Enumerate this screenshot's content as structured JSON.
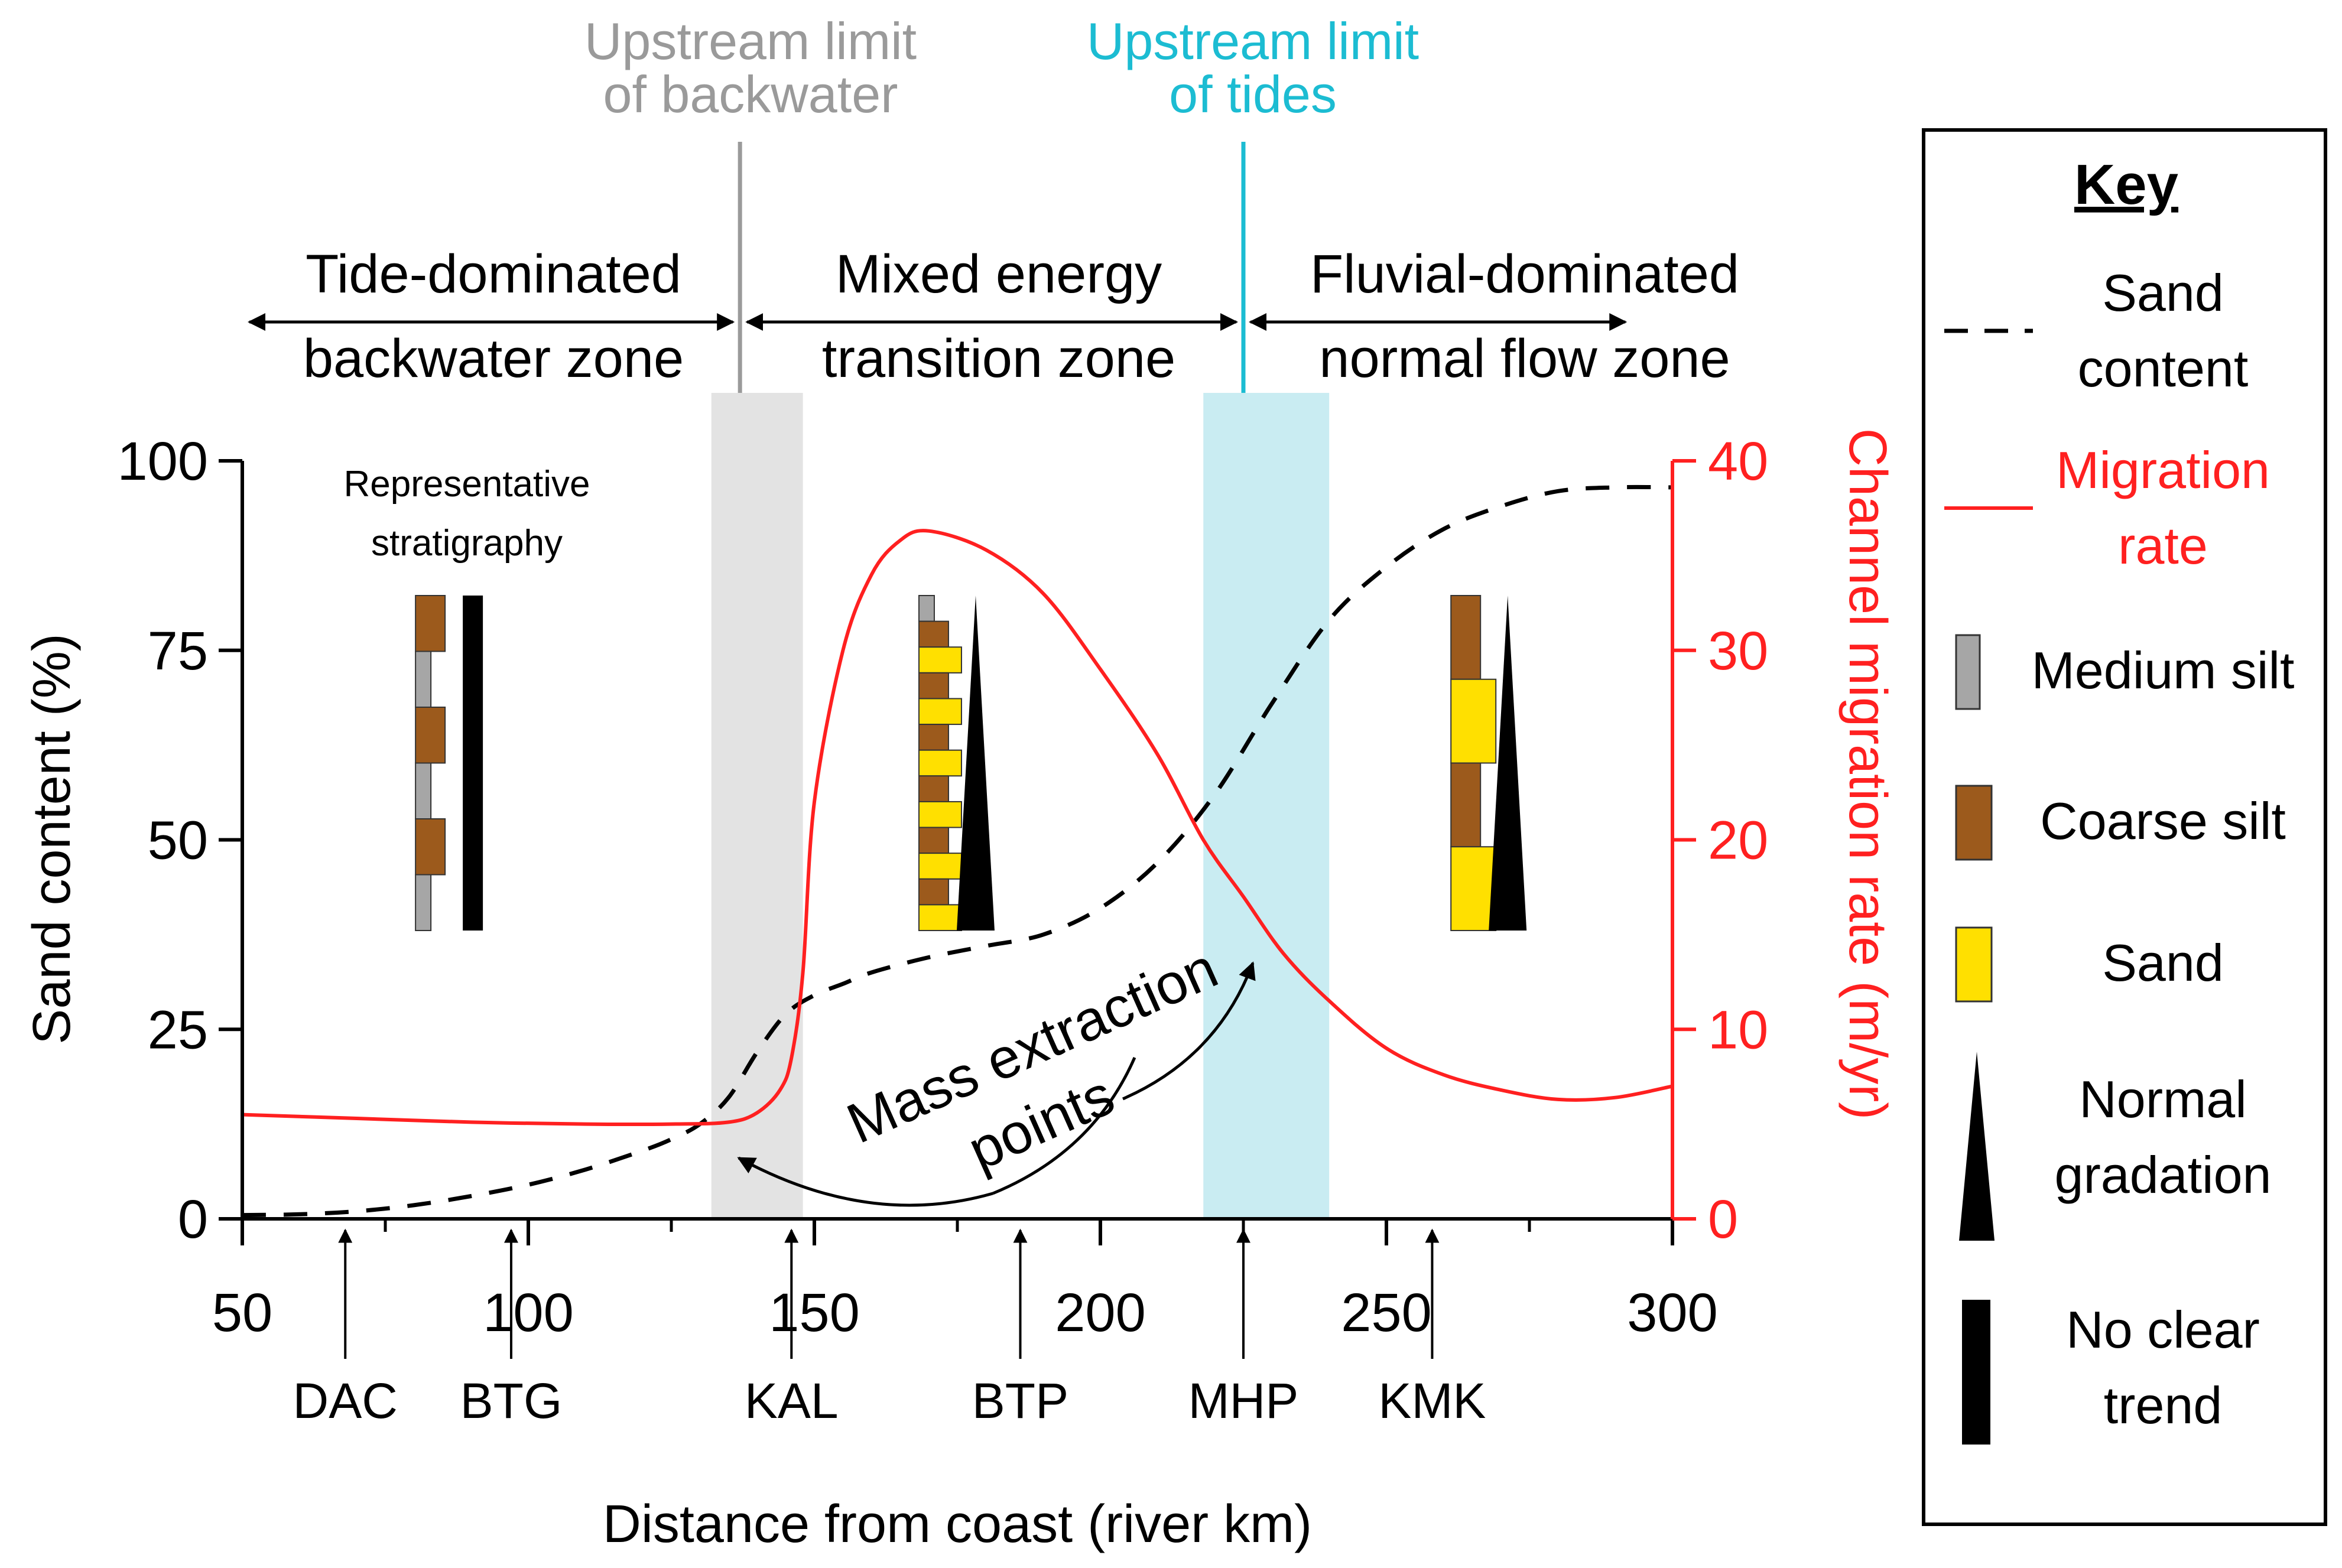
{
  "chart_data": {
    "type": "line",
    "x_axis": {
      "label": "Distance from coast (river km)",
      "range": [
        50,
        300
      ],
      "ticks": [
        {
          "value": 50,
          "label": "50"
        },
        {
          "value": 100,
          "label": "100"
        },
        {
          "value": 150,
          "label": "150"
        },
        {
          "value": 200,
          "label": "200"
        },
        {
          "value": 250,
          "label": "250"
        },
        {
          "value": 300,
          "label": "300"
        }
      ]
    },
    "y_left": {
      "label": "Sand content (%)",
      "range": [
        0,
        100
      ],
      "ticks": [
        {
          "value": 0,
          "label": "0"
        },
        {
          "value": 25,
          "label": "25"
        },
        {
          "value": 50,
          "label": "50"
        },
        {
          "value": 75,
          "label": "75"
        },
        {
          "value": 100,
          "label": "100"
        }
      ]
    },
    "y_right": {
      "label": "Channel migration rate (m/yr)",
      "range": [
        0,
        40
      ],
      "color": "#ff2020",
      "ticks": [
        {
          "value": 0,
          "label": "0"
        },
        {
          "value": 10,
          "label": "10"
        },
        {
          "value": 20,
          "label": "20"
        },
        {
          "value": 30,
          "label": "30"
        },
        {
          "value": 40,
          "label": "40"
        }
      ]
    },
    "series": [
      {
        "name": "Sand content",
        "axis": "left",
        "style": "dashed",
        "color": "#000000",
        "x": [
          50,
          60,
          70,
          80,
          90,
          100,
          110,
          120,
          125,
          130,
          135,
          140,
          145,
          150,
          155,
          160,
          170,
          180,
          190,
          200,
          210,
          220,
          230,
          240,
          250,
          260,
          270,
          280,
          290,
          300
        ],
        "y": [
          0.5,
          0.6,
          1,
          1.8,
          3,
          4.5,
          6.5,
          9,
          10.5,
          12.5,
          16,
          22,
          27,
          29.5,
          31,
          32.5,
          34.5,
          36,
          37.5,
          41,
          47,
          56,
          68,
          79,
          86,
          91,
          94,
          96,
          96.5,
          96.5
        ]
      },
      {
        "name": "Migration rate",
        "axis": "right",
        "style": "solid",
        "color": "#ff2020",
        "x": [
          50,
          70,
          90,
          110,
          125,
          135,
          140,
          144,
          146,
          148,
          150,
          155,
          160,
          165,
          170,
          180,
          190,
          200,
          210,
          218,
          225,
          232,
          240,
          250,
          260,
          270,
          280,
          290,
          300
        ],
        "y": [
          5.5,
          5.3,
          5.1,
          5.0,
          5.0,
          5.1,
          5.6,
          6.8,
          8.5,
          13,
          22,
          30,
          34,
          35.8,
          36.3,
          35.3,
          33,
          29,
          24.5,
          20,
          17,
          14,
          11.5,
          9,
          7.6,
          6.8,
          6.3,
          6.4,
          7.0
        ]
      }
    ],
    "shaded_zones": [
      {
        "name": "backwater-limit-zone",
        "x_range": [
          132,
          148
        ],
        "color": "#e3e3e3"
      },
      {
        "name": "tidal-limit-zone",
        "x_range": [
          218,
          240
        ],
        "color": "#c9ecf2"
      }
    ],
    "limit_lines": [
      {
        "x": 137,
        "label_lines": [
          "Upstream limit",
          "of backwater"
        ],
        "color": "#9a9a9a"
      },
      {
        "x": 225,
        "label_lines": [
          "Upstream limit",
          "of tides"
        ],
        "color": "#1cbcd2"
      }
    ],
    "zones": [
      {
        "from": 50,
        "to": 137,
        "label_lines": [
          "Tide-dominated",
          "backwater zone"
        ]
      },
      {
        "from": 137,
        "to": 225,
        "label_lines": [
          "Mixed energy",
          "transition zone"
        ]
      },
      {
        "from": 225,
        "to": 293,
        "label_lines": [
          "Fluvial-dominated",
          "normal flow zone"
        ]
      }
    ],
    "stations": [
      {
        "code": "DAC",
        "x": 68
      },
      {
        "code": "BTG",
        "x": 97
      },
      {
        "code": "KAL",
        "x": 146
      },
      {
        "code": "BTP",
        "x": 186
      },
      {
        "code": "MHP",
        "x": 225
      },
      {
        "code": "KMK",
        "x": 258
      }
    ],
    "annotations": {
      "mass_extraction_lines": [
        "Mass extraction",
        "points"
      ],
      "stratigraphy_title_lines": [
        "Representative",
        "stratigraphy"
      ]
    },
    "stratigraphy_columns": [
      {
        "name": "backwater-column",
        "x": 84,
        "trend": "no-clear-trend",
        "layers": [
          "coarse silt",
          "medium silt",
          "coarse silt",
          "medium silt",
          "coarse silt",
          "medium silt"
        ]
      },
      {
        "name": "transition-column",
        "x": 172,
        "trend": "normal-gradation",
        "layers": [
          "medium silt",
          "coarse silt",
          "sand",
          "coarse silt",
          "sand",
          "coarse silt",
          "sand",
          "coarse silt",
          "sand",
          "coarse silt",
          "sand",
          "coarse silt",
          "sand"
        ]
      },
      {
        "name": "fluvial-column",
        "x": 265,
        "trend": "normal-gradation",
        "layers": [
          "coarse silt",
          "sand",
          "coarse silt",
          "sand"
        ]
      }
    ],
    "legend": {
      "title": "Key",
      "placement": "right",
      "items": [
        {
          "id": "sand-content",
          "kind": "dashed-line",
          "label_lines": [
            "Sand",
            "content"
          ]
        },
        {
          "id": "migration-rate",
          "kind": "red-line",
          "label_lines": [
            "Migration",
            "rate"
          ]
        },
        {
          "id": "medium-silt",
          "kind": "swatch",
          "color": "#a6a6a6",
          "label_lines": [
            "Medium silt"
          ]
        },
        {
          "id": "coarse-silt",
          "kind": "swatch",
          "color": "#9c5a1c",
          "label_lines": [
            "Coarse silt"
          ]
        },
        {
          "id": "sand",
          "kind": "swatch",
          "color": "#ffe000",
          "label_lines": [
            "Sand"
          ]
        },
        {
          "id": "normal-gradation",
          "kind": "triangle",
          "label_lines": [
            "Normal",
            "gradation"
          ]
        },
        {
          "id": "no-clear-trend",
          "kind": "bar",
          "label_lines": [
            "No clear",
            "trend"
          ]
        }
      ]
    }
  }
}
